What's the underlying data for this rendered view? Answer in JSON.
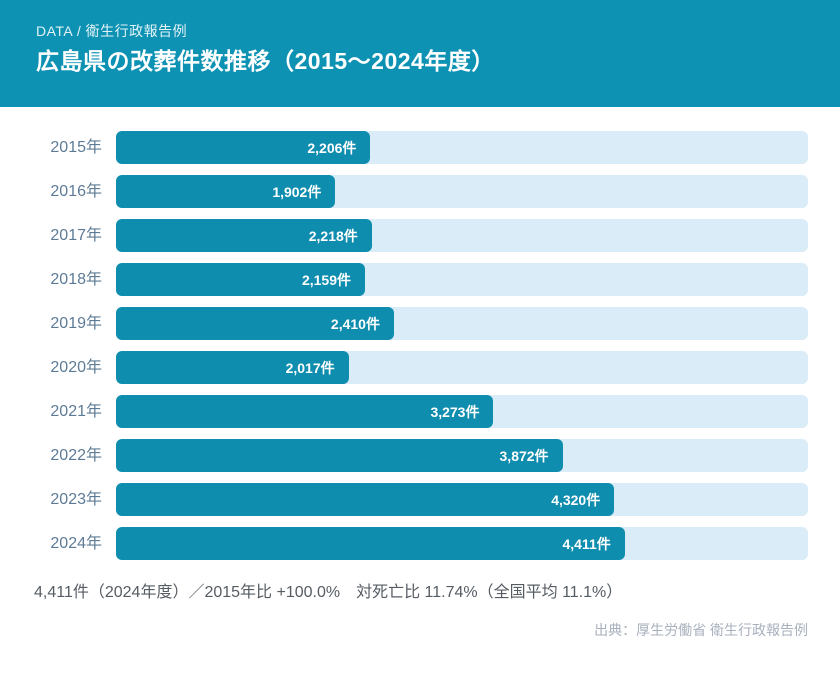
{
  "header": {
    "eyebrow": "DATA / 衛生行政報告例",
    "title": "広島県の改葬件数推移（2015～2024年度）"
  },
  "chart_data": {
    "type": "bar",
    "orientation": "horizontal",
    "title": "広島県の改葬件数推移（2015～2024年度）",
    "categories": [
      "2015年",
      "2016年",
      "2017年",
      "2018年",
      "2019年",
      "2020年",
      "2021年",
      "2022年",
      "2023年",
      "2024年"
    ],
    "values": [
      2206,
      1902,
      2218,
      2159,
      2410,
      2017,
      3273,
      3872,
      4320,
      4411
    ],
    "value_labels": [
      "2,206件",
      "1,902件",
      "2,218件",
      "2,159件",
      "2,410件",
      "2,017件",
      "3,273件",
      "3,872件",
      "4,320件",
      "4,411件"
    ],
    "xlabel": "",
    "ylabel": "",
    "xlim": [
      0,
      6000
    ],
    "grid": false,
    "legend": false,
    "value_label_position": "inside-end"
  },
  "footer": {
    "summary": "4,411件（2024年度）／2015年比 +100.0%　対死亡比 11.74%（全国平均 11.1%）",
    "source": "出典：厚生労働省 衛生行政報告例"
  },
  "colors": {
    "header_background": "#0E92B4",
    "bar": "#0F8DAE",
    "track": "#DBECF9",
    "year_label": "#5E7B96",
    "summary_text": "#555C63",
    "source_text": "#A9B1BE",
    "header_text": "#FFFFFF",
    "bar_value_text": "#FFFFFF"
  }
}
